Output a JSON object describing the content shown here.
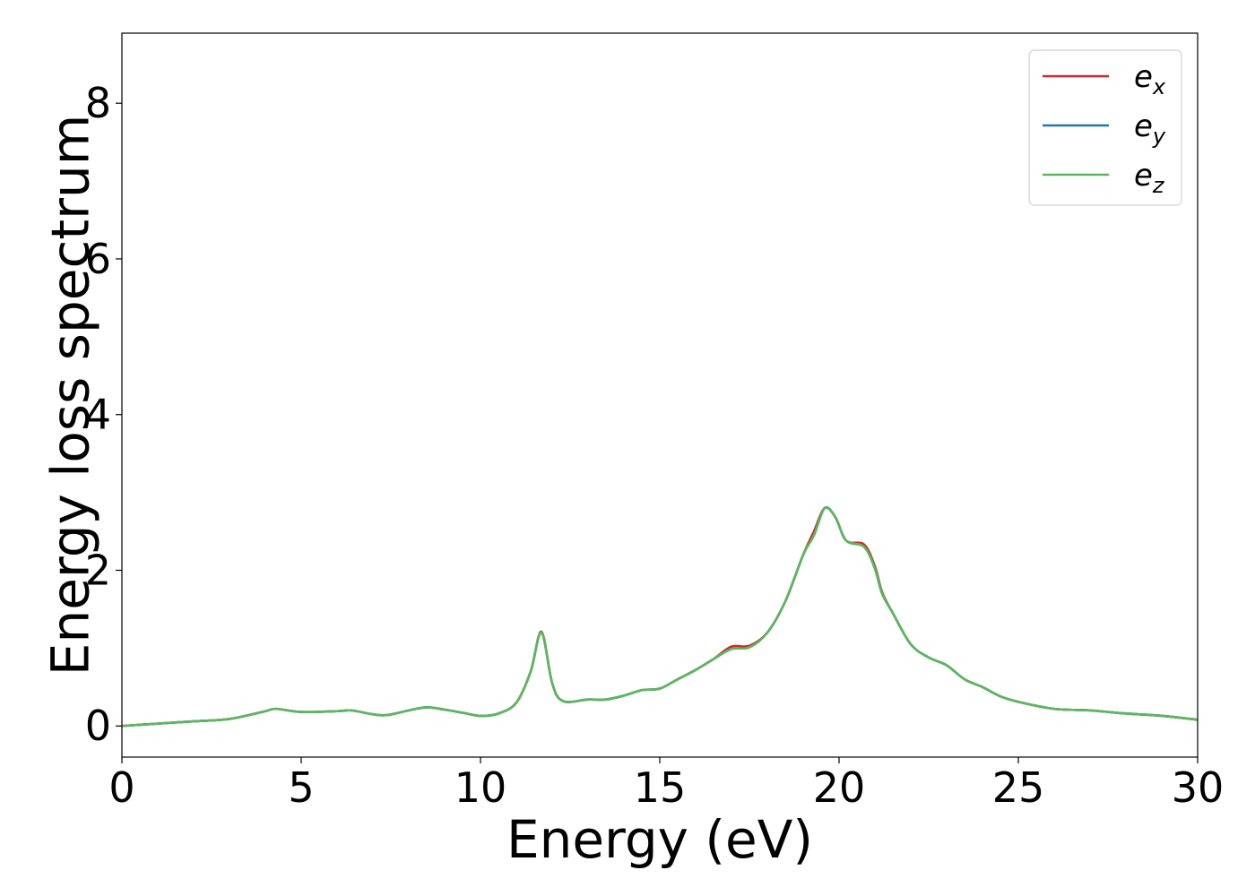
{
  "chart_data": {
    "type": "line",
    "title": "",
    "xlabel": "Energy (eV)",
    "ylabel": "Energy loss spectrum",
    "xlim": [
      0,
      30
    ],
    "ylim": [
      -0.4,
      8.9
    ],
    "xticks": [
      0,
      5,
      10,
      15,
      20,
      25,
      30
    ],
    "yticks": [
      0,
      2,
      4,
      6,
      8
    ],
    "xtick_labels": [
      "0",
      "5",
      "10",
      "15",
      "20",
      "25",
      "30"
    ],
    "ytick_labels": [
      "0",
      "2",
      "4",
      "6",
      "8"
    ],
    "grid": false,
    "legend_position": "top-right",
    "x": [
      0,
      1,
      2,
      3,
      4,
      4.3,
      5,
      6,
      6.4,
      7,
      7.4,
      8,
      8.5,
      9,
      9.5,
      10,
      10.5,
      11,
      11.4,
      11.7,
      12,
      12.3,
      13,
      13.5,
      14,
      14.5,
      15,
      15.5,
      16,
      16.5,
      17,
      17.5,
      18,
      18.5,
      19,
      19.3,
      19.6,
      19.9,
      20.2,
      20.7,
      21,
      21.2,
      21.5,
      22,
      22.5,
      23,
      23.5,
      24,
      24.5,
      25,
      26,
      27,
      28,
      29,
      30
    ],
    "series": [
      {
        "name": "e_x",
        "legend_main": "e",
        "legend_sub": "x",
        "color": "#d62728",
        "values": [
          0,
          0.03,
          0.06,
          0.09,
          0.19,
          0.22,
          0.18,
          0.19,
          0.2,
          0.15,
          0.14,
          0.2,
          0.24,
          0.21,
          0.17,
          0.13,
          0.16,
          0.3,
          0.7,
          1.21,
          0.55,
          0.32,
          0.34,
          0.34,
          0.39,
          0.46,
          0.48,
          0.6,
          0.72,
          0.86,
          1.02,
          1.03,
          1.2,
          1.6,
          2.2,
          2.5,
          2.8,
          2.68,
          2.38,
          2.33,
          2.05,
          1.72,
          1.45,
          1.05,
          0.88,
          0.78,
          0.6,
          0.5,
          0.38,
          0.31,
          0.22,
          0.2,
          0.16,
          0.13,
          0.08
        ]
      },
      {
        "name": "e_y",
        "legend_main": "e",
        "legend_sub": "y",
        "color": "#1f77b4",
        "values": [
          0,
          0.03,
          0.06,
          0.09,
          0.19,
          0.22,
          0.18,
          0.19,
          0.2,
          0.15,
          0.14,
          0.2,
          0.24,
          0.21,
          0.17,
          0.13,
          0.16,
          0.3,
          0.7,
          1.2,
          0.55,
          0.32,
          0.34,
          0.34,
          0.39,
          0.46,
          0.48,
          0.6,
          0.72,
          0.86,
          0.99,
          1.01,
          1.2,
          1.6,
          2.2,
          2.45,
          2.8,
          2.68,
          2.38,
          2.3,
          2.02,
          1.7,
          1.45,
          1.05,
          0.88,
          0.78,
          0.6,
          0.5,
          0.38,
          0.31,
          0.22,
          0.2,
          0.16,
          0.13,
          0.08
        ]
      },
      {
        "name": "e_z",
        "legend_main": "e",
        "legend_sub": "z",
        "color": "#5cb85c",
        "values": [
          0,
          0.03,
          0.06,
          0.09,
          0.19,
          0.22,
          0.18,
          0.19,
          0.2,
          0.15,
          0.14,
          0.2,
          0.24,
          0.21,
          0.17,
          0.13,
          0.16,
          0.3,
          0.7,
          1.2,
          0.55,
          0.32,
          0.34,
          0.34,
          0.39,
          0.46,
          0.48,
          0.6,
          0.72,
          0.86,
          0.99,
          1.01,
          1.2,
          1.6,
          2.2,
          2.45,
          2.8,
          2.68,
          2.38,
          2.3,
          2.02,
          1.7,
          1.45,
          1.05,
          0.88,
          0.78,
          0.6,
          0.5,
          0.38,
          0.31,
          0.22,
          0.2,
          0.16,
          0.13,
          0.08
        ]
      }
    ]
  }
}
